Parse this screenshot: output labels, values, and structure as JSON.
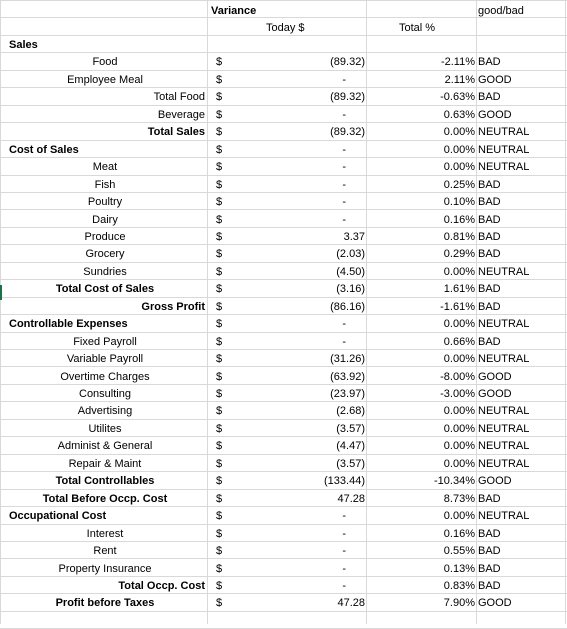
{
  "header": {
    "variance": "Variance",
    "today": "Today $",
    "total_pct": "Total %",
    "good_bad": "good/bad"
  },
  "rows": [
    {
      "label": "Sales",
      "style": "section",
      "dollar": "",
      "amount": "",
      "pct": "",
      "status": ""
    },
    {
      "label": "Food",
      "style": "center",
      "dollar": "$",
      "amount": "(89.32)",
      "pct": "-2.11%",
      "status": "BAD"
    },
    {
      "label": "Employee Meal",
      "style": "center",
      "dollar": "$",
      "amount": "-",
      "pct": "2.11%",
      "status": "GOOD"
    },
    {
      "label": "Total Food",
      "style": "right",
      "dollar": "$",
      "amount": "(89.32)",
      "pct": "-0.63%",
      "status": "BAD"
    },
    {
      "label": "Beverage",
      "style": "right",
      "dollar": "$",
      "amount": "-",
      "pct": "0.63%",
      "status": "GOOD"
    },
    {
      "label": "Total Sales",
      "style": "right-bold",
      "dollar": "$",
      "amount": "(89.32)",
      "pct": "0.00%",
      "status": "NEUTRAL"
    },
    {
      "label": "Cost of Sales",
      "style": "section",
      "dollar": "$",
      "amount": "-",
      "pct": "0.00%",
      "status": "NEUTRAL"
    },
    {
      "label": "Meat",
      "style": "center",
      "dollar": "$",
      "amount": "-",
      "pct": "0.00%",
      "status": "NEUTRAL"
    },
    {
      "label": "Fish",
      "style": "center",
      "dollar": "$",
      "amount": "-",
      "pct": "0.25%",
      "status": "BAD"
    },
    {
      "label": "Poultry",
      "style": "center",
      "dollar": "$",
      "amount": "-",
      "pct": "0.10%",
      "status": "BAD"
    },
    {
      "label": "Dairy",
      "style": "center",
      "dollar": "$",
      "amount": "-",
      "pct": "0.16%",
      "status": "BAD"
    },
    {
      "label": "Produce",
      "style": "center",
      "dollar": "$",
      "amount": "3.37",
      "pct": "0.81%",
      "status": "BAD"
    },
    {
      "label": "Grocery",
      "style": "center",
      "dollar": "$",
      "amount": "(2.03)",
      "pct": "0.29%",
      "status": "BAD"
    },
    {
      "label": "Sundries",
      "style": "center",
      "dollar": "$",
      "amount": "(4.50)",
      "pct": "0.00%",
      "status": "NEUTRAL"
    },
    {
      "label": "Total Cost of Sales",
      "style": "center-bold",
      "dollar": "$",
      "amount": "(3.16)",
      "pct": "1.61%",
      "status": "BAD"
    },
    {
      "label": "Gross Profit",
      "style": "right-bold",
      "dollar": "$",
      "amount": "(86.16)",
      "pct": "-1.61%",
      "status": "BAD"
    },
    {
      "label": "Controllable Expenses",
      "style": "section",
      "dollar": "$",
      "amount": "-",
      "pct": "0.00%",
      "status": "NEUTRAL"
    },
    {
      "label": "Fixed Payroll",
      "style": "center",
      "dollar": "$",
      "amount": "-",
      "pct": "0.66%",
      "status": "BAD"
    },
    {
      "label": "Variable Payroll",
      "style": "center",
      "dollar": "$",
      "amount": "(31.26)",
      "pct": "0.00%",
      "status": "NEUTRAL"
    },
    {
      "label": "Overtime Charges",
      "style": "center",
      "dollar": "$",
      "amount": "(63.92)",
      "pct": "-8.00%",
      "status": "GOOD"
    },
    {
      "label": "Consulting",
      "style": "center",
      "dollar": "$",
      "amount": "(23.97)",
      "pct": "-3.00%",
      "status": "GOOD"
    },
    {
      "label": "Advertising",
      "style": "center",
      "dollar": "$",
      "amount": "(2.68)",
      "pct": "0.00%",
      "status": "NEUTRAL"
    },
    {
      "label": "Utilites",
      "style": "center",
      "dollar": "$",
      "amount": "(3.57)",
      "pct": "0.00%",
      "status": "NEUTRAL"
    },
    {
      "label": "Administ & General",
      "style": "center",
      "dollar": "$",
      "amount": "(4.47)",
      "pct": "0.00%",
      "status": "NEUTRAL"
    },
    {
      "label": "Repair & Maint",
      "style": "center",
      "dollar": "$",
      "amount": "(3.57)",
      "pct": "0.00%",
      "status": "NEUTRAL"
    },
    {
      "label": "Total Controllables",
      "style": "center-bold",
      "dollar": "$",
      "amount": "(133.44)",
      "pct": "-10.34%",
      "status": "GOOD"
    },
    {
      "label": "Total Before Occp. Cost",
      "style": "center-bold",
      "dollar": "$",
      "amount": "47.28",
      "pct": "8.73%",
      "status": "BAD"
    },
    {
      "label": "Occupational Cost",
      "style": "section",
      "dollar": "$",
      "amount": "-",
      "pct": "0.00%",
      "status": "NEUTRAL"
    },
    {
      "label": "Interest",
      "style": "center",
      "dollar": "$",
      "amount": "-",
      "pct": "0.16%",
      "status": "BAD"
    },
    {
      "label": "Rent",
      "style": "center",
      "dollar": "$",
      "amount": "-",
      "pct": "0.55%",
      "status": "BAD"
    },
    {
      "label": "Property Insurance",
      "style": "center",
      "dollar": "$",
      "amount": "-",
      "pct": "0.13%",
      "status": "BAD"
    },
    {
      "label": "Total Occp. Cost",
      "style": "right-bold",
      "dollar": "$",
      "amount": "-",
      "pct": "0.83%",
      "status": "BAD"
    },
    {
      "label": "Profit before Taxes",
      "style": "center-bold",
      "dollar": "$",
      "amount": "47.28",
      "pct": "7.90%",
      "status": "GOOD"
    }
  ]
}
